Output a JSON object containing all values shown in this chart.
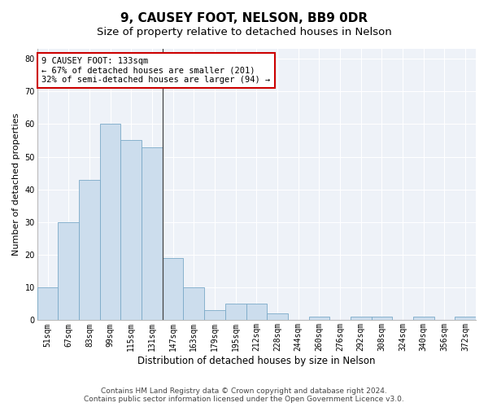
{
  "title": "9, CAUSEY FOOT, NELSON, BB9 0DR",
  "subtitle": "Size of property relative to detached houses in Nelson",
  "xlabel": "Distribution of detached houses by size in Nelson",
  "ylabel": "Number of detached properties",
  "bar_labels": [
    "51sqm",
    "67sqm",
    "83sqm",
    "99sqm",
    "115sqm",
    "131sqm",
    "147sqm",
    "163sqm",
    "179sqm",
    "195sqm",
    "212sqm",
    "228sqm",
    "244sqm",
    "260sqm",
    "276sqm",
    "292sqm",
    "308sqm",
    "324sqm",
    "340sqm",
    "356sqm",
    "372sqm"
  ],
  "bar_values": [
    10,
    30,
    43,
    60,
    55,
    53,
    19,
    10,
    3,
    5,
    5,
    2,
    0,
    1,
    0,
    1,
    1,
    0,
    1,
    0,
    1
  ],
  "bar_color": "#ccdded",
  "bar_edge_color": "#7aaac8",
  "vline_x": 5.5,
  "vline_color": "#444444",
  "annotation_text": "9 CAUSEY FOOT: 133sqm\n← 67% of detached houses are smaller (201)\n32% of semi-detached houses are larger (94) →",
  "annotation_box_color": "#ffffff",
  "annotation_box_edge": "#cc0000",
  "ylim": [
    0,
    83
  ],
  "yticks": [
    0,
    10,
    20,
    30,
    40,
    50,
    60,
    70,
    80
  ],
  "title_fontsize": 11,
  "subtitle_fontsize": 9.5,
  "xlabel_fontsize": 8.5,
  "ylabel_fontsize": 8,
  "tick_fontsize": 7,
  "annotation_fontsize": 7.5,
  "footer_fontsize": 6.5,
  "footer_line1": "Contains HM Land Registry data © Crown copyright and database right 2024.",
  "footer_line2": "Contains public sector information licensed under the Open Government Licence v3.0.",
  "background_color": "#eef2f8"
}
